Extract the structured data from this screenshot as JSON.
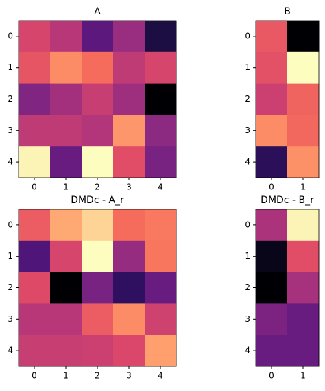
{
  "chart_data": [
    {
      "type": "heatmap",
      "title": "A",
      "colormap": "magma",
      "clim": [
        0,
        1
      ],
      "xticks": [
        0,
        1,
        2,
        3,
        4
      ],
      "yticks": [
        0,
        1,
        2,
        3,
        4
      ],
      "values": [
        [
          0.58,
          0.5,
          0.28,
          0.43,
          0.12
        ],
        [
          0.63,
          0.76,
          0.69,
          0.52,
          0.58
        ],
        [
          0.37,
          0.45,
          0.54,
          0.44,
          0
        ],
        [
          0.52,
          0.52,
          0.49,
          0.78,
          0.4
        ],
        [
          0.98,
          0.31,
          1,
          0.61,
          0.35
        ]
      ]
    },
    {
      "type": "heatmap",
      "title": "B",
      "colormap": "magma",
      "clim": [
        0,
        1
      ],
      "xticks": [
        0,
        1
      ],
      "yticks": [
        0,
        1,
        2,
        3,
        4
      ],
      "values": [
        [
          0.64,
          0
        ],
        [
          0.62,
          1
        ],
        [
          0.55,
          0.67
        ],
        [
          0.76,
          0.68
        ],
        [
          0.16,
          0.77
        ]
      ]
    },
    {
      "type": "heatmap",
      "title": "DMDc - A_r",
      "colormap": "magma",
      "clim": [
        0,
        1
      ],
      "xticks": [
        0,
        1,
        2,
        3,
        4
      ],
      "yticks": [
        0,
        1,
        2,
        3,
        4
      ],
      "values": [
        [
          0.65,
          0.82,
          0.91,
          0.69,
          0.72
        ],
        [
          0.25,
          0.58,
          1,
          0.42,
          0.71
        ],
        [
          0.6,
          0,
          0.35,
          0.17,
          0.31
        ],
        [
          0.5,
          0.5,
          0.65,
          0.76,
          0.56
        ],
        [
          0.54,
          0.54,
          0.55,
          0.59,
          0.8
        ]
      ]
    },
    {
      "type": "heatmap",
      "title": "DMDc - B_r",
      "colormap": "magma",
      "clim": [
        0,
        1
      ],
      "xticks": [
        0,
        1
      ],
      "yticks": [
        0,
        1,
        2,
        3,
        4
      ],
      "values": [
        [
          0.47,
          0.98
        ],
        [
          0.04,
          0.61
        ],
        [
          0,
          0.46
        ],
        [
          0.36,
          0.31
        ],
        [
          0.31,
          0.31
        ]
      ]
    }
  ]
}
